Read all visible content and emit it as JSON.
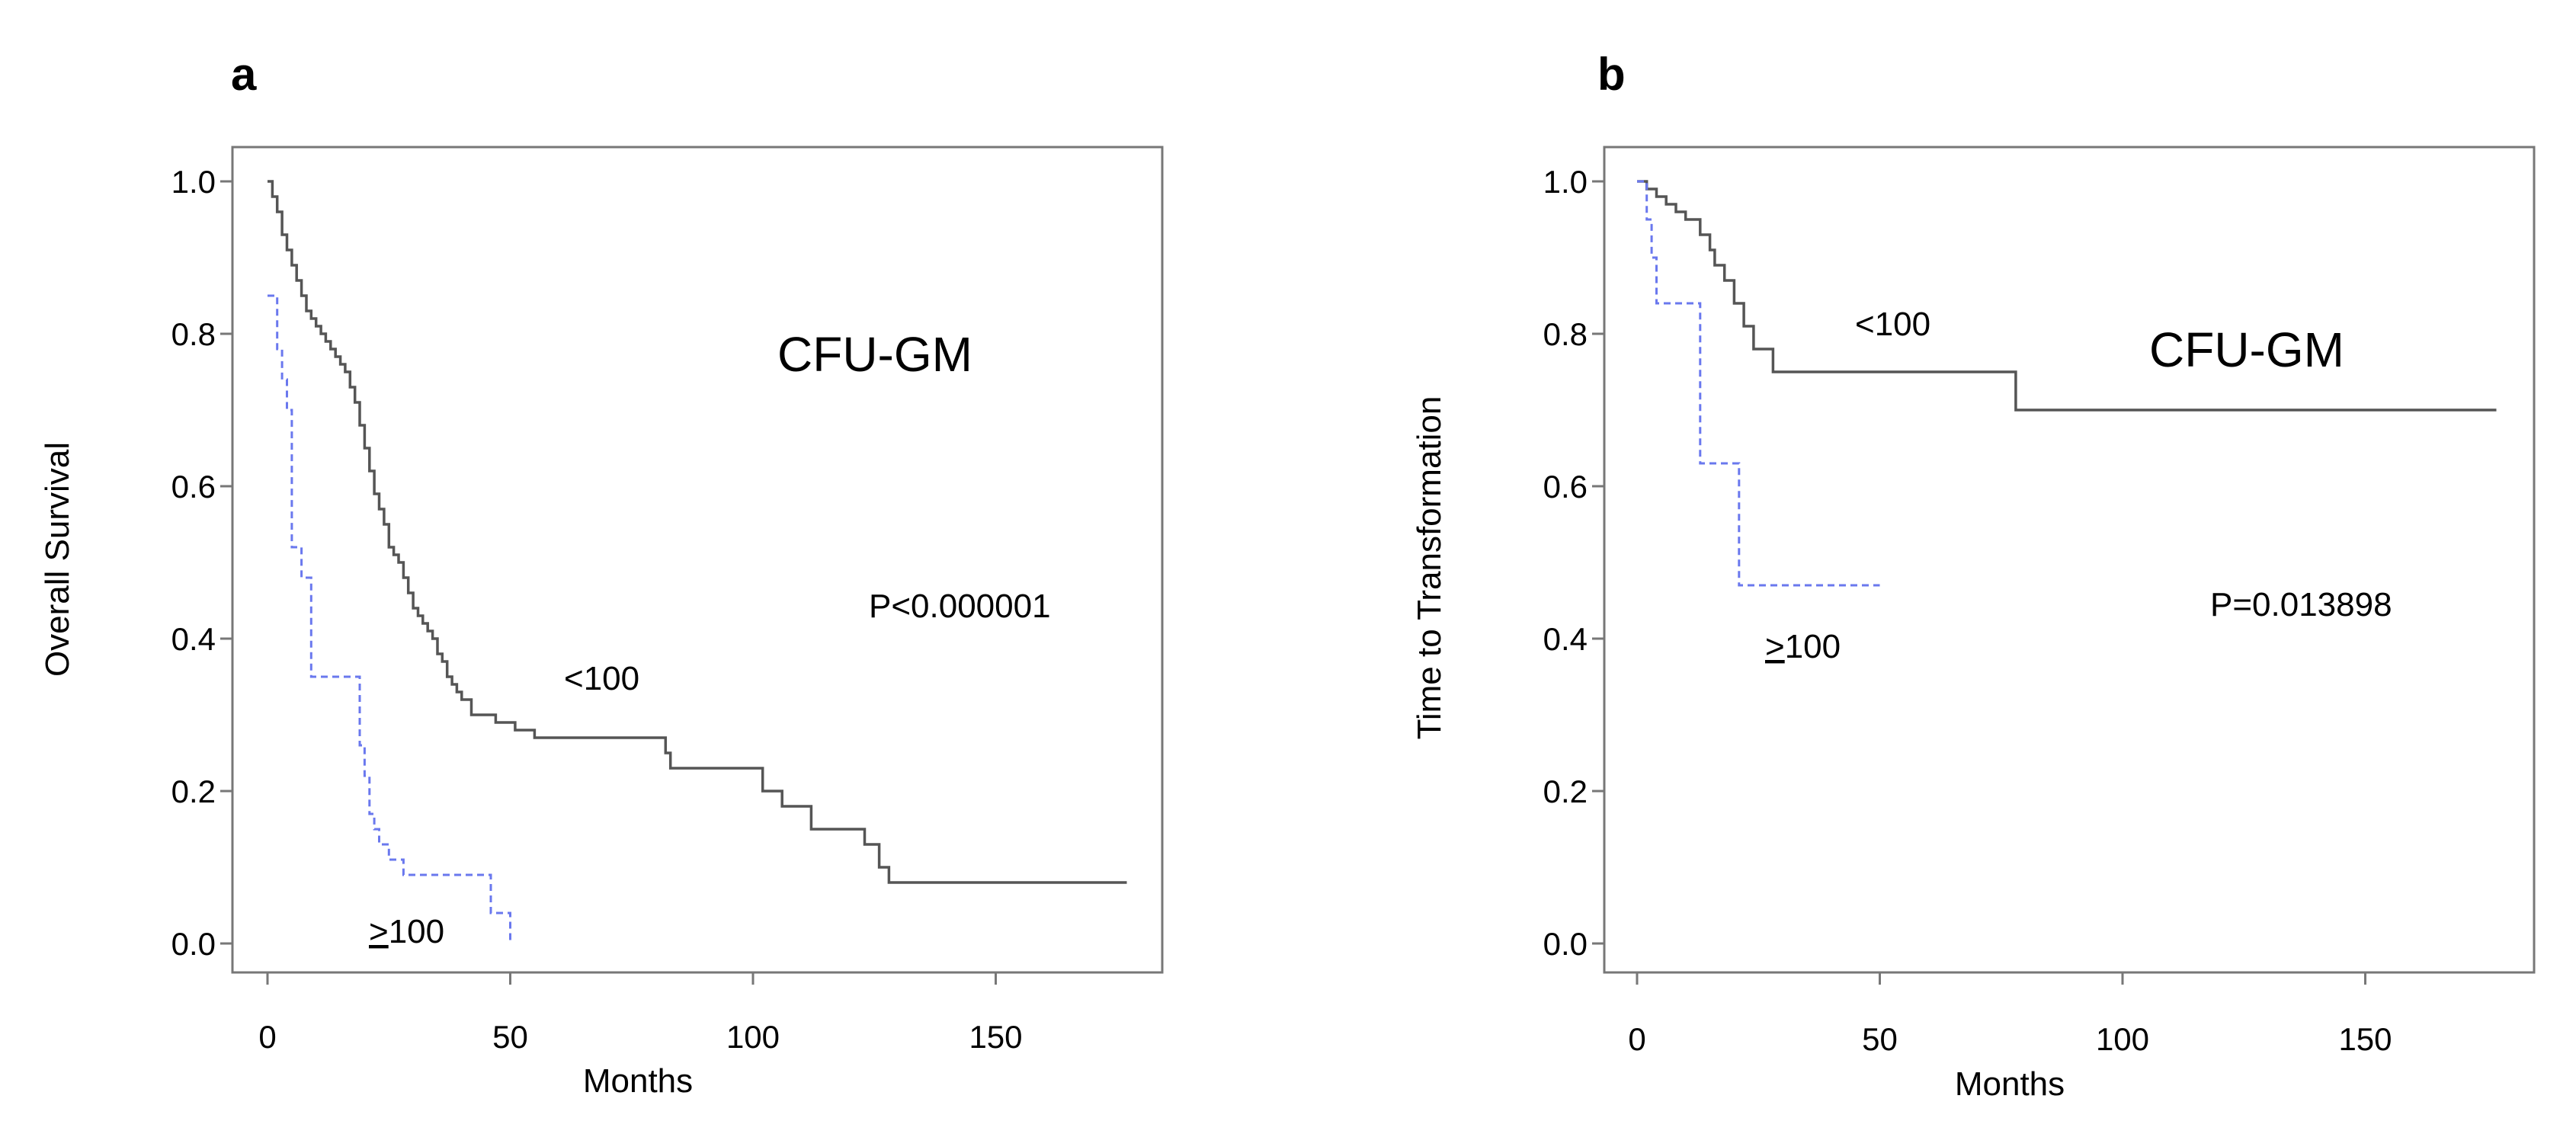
{
  "chart_data": [
    {
      "panel_label": "a",
      "type": "line",
      "step": true,
      "annotation_title": "CFU-GM",
      "p_value": "P<0.000001",
      "xlabel": "Months",
      "ylabel": "Overall Survival",
      "xlim": [
        0,
        180
      ],
      "ylim": [
        0,
        1.0
      ],
      "xticks": [
        "0",
        "50",
        "100",
        "150"
      ],
      "yticks": [
        "0.0",
        "0.2",
        "0.4",
        "0.6",
        "0.8",
        "1.0"
      ],
      "series": [
        {
          "name": "<100",
          "label_prefix": "",
          "label_rest": "<100",
          "style": "solid",
          "x": [
            0,
            1,
            2,
            3,
            4,
            5,
            6,
            7,
            8,
            9,
            10,
            11,
            12,
            13,
            14,
            15,
            16,
            17,
            18,
            19,
            20,
            21,
            22,
            23,
            24,
            25,
            26,
            27,
            28,
            29,
            30,
            31,
            32,
            33,
            34,
            35,
            36,
            37,
            38,
            39,
            40,
            42,
            44,
            47,
            51,
            55,
            60,
            82,
            83,
            102,
            106,
            112,
            123,
            126,
            128,
            177
          ],
          "y": [
            1.0,
            0.98,
            0.96,
            0.93,
            0.91,
            0.89,
            0.87,
            0.85,
            0.83,
            0.82,
            0.81,
            0.8,
            0.79,
            0.78,
            0.77,
            0.76,
            0.75,
            0.73,
            0.71,
            0.68,
            0.65,
            0.62,
            0.59,
            0.57,
            0.55,
            0.52,
            0.51,
            0.5,
            0.48,
            0.46,
            0.44,
            0.43,
            0.42,
            0.41,
            0.4,
            0.38,
            0.37,
            0.35,
            0.34,
            0.33,
            0.32,
            0.3,
            0.3,
            0.29,
            0.28,
            0.27,
            0.27,
            0.25,
            0.23,
            0.2,
            0.18,
            0.15,
            0.13,
            0.1,
            0.08,
            0.08
          ]
        },
        {
          "name": "≥100",
          "label_prefix": ">",
          "label_rest": "100",
          "style": "dashed",
          "x": [
            0,
            2,
            3,
            4,
            5,
            7,
            9,
            19,
            20,
            21,
            22,
            23,
            25,
            28,
            30,
            46,
            48,
            50
          ],
          "y": [
            0.85,
            0.78,
            0.74,
            0.7,
            0.52,
            0.48,
            0.35,
            0.26,
            0.22,
            0.17,
            0.15,
            0.13,
            0.11,
            0.09,
            0.09,
            0.04,
            0.04,
            0.0
          ]
        }
      ]
    },
    {
      "panel_label": "b",
      "type": "line",
      "step": true,
      "annotation_title": "CFU-GM",
      "p_value": "P=0.013898",
      "xlabel": "Months",
      "ylabel": "Time to Transformation",
      "xlim": [
        0,
        180
      ],
      "ylim": [
        0,
        1.0
      ],
      "xticks": [
        "0",
        "50",
        "100",
        "150"
      ],
      "yticks": [
        "0.0",
        "0.2",
        "0.4",
        "0.6",
        "0.8",
        "1.0"
      ],
      "series": [
        {
          "name": "<100",
          "label_prefix": "",
          "label_rest": "<100",
          "style": "solid",
          "x": [
            0,
            2,
            4,
            6,
            8,
            10,
            13,
            15,
            16,
            18,
            20,
            22,
            24,
            28,
            76,
            78,
            177
          ],
          "y": [
            1.0,
            0.99,
            0.98,
            0.97,
            0.96,
            0.95,
            0.93,
            0.91,
            0.89,
            0.87,
            0.84,
            0.81,
            0.78,
            0.75,
            0.75,
            0.7,
            0.7
          ]
        },
        {
          "name": "≥100",
          "label_prefix": ">",
          "label_rest": "100",
          "style": "dashed",
          "x": [
            0,
            2,
            3,
            4,
            13,
            21,
            50
          ],
          "y": [
            1.0,
            0.95,
            0.9,
            0.84,
            0.63,
            0.47,
            0.47
          ]
        }
      ]
    }
  ]
}
